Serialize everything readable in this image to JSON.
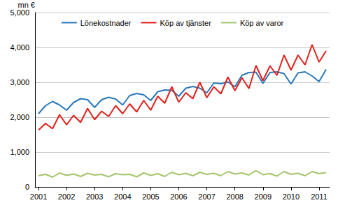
{
  "chart_data": {
    "type": "line",
    "y_label": "mn €",
    "categories": [
      "2001",
      null,
      null,
      null,
      "2002",
      null,
      null,
      null,
      "2003",
      null,
      null,
      null,
      "2004",
      null,
      null,
      null,
      "2005",
      null,
      null,
      null,
      "2006",
      null,
      null,
      null,
      "2007",
      null,
      null,
      null,
      "2008",
      null,
      null,
      null,
      "2009",
      null,
      null,
      null,
      "2010",
      null,
      null,
      null,
      "2011",
      null
    ],
    "series": [
      {
        "name": "Lönekostnader",
        "color": "#2a78b8",
        "values": [
          2100,
          2330,
          2450,
          2350,
          2200,
          2420,
          2530,
          2500,
          2280,
          2500,
          2570,
          2520,
          2350,
          2620,
          2680,
          2640,
          2480,
          2730,
          2780,
          2770,
          2600,
          2830,
          2880,
          2830,
          2700,
          2980,
          2960,
          3010,
          2870,
          3200,
          3280,
          3290,
          2970,
          3280,
          3300,
          3250,
          2950,
          3270,
          3300,
          3180,
          3020,
          3370
        ]
      },
      {
        "name": "Köp av tjänster",
        "color": "#e3201c",
        "values": [
          1630,
          1820,
          1670,
          2070,
          1780,
          2050,
          1850,
          2250,
          1930,
          2170,
          2020,
          2330,
          2100,
          2380,
          2150,
          2480,
          2200,
          2600,
          2400,
          2870,
          2430,
          2700,
          2530,
          3000,
          2560,
          2870,
          2670,
          3150,
          2760,
          3130,
          2820,
          3480,
          3050,
          3470,
          3200,
          3780,
          3350,
          3780,
          3500,
          4080,
          3580,
          3900
        ]
      },
      {
        "name": "Köp av varor",
        "color": "#a4c46c",
        "values": [
          320,
          360,
          280,
          400,
          330,
          370,
          300,
          390,
          340,
          360,
          290,
          380,
          350,
          360,
          290,
          400,
          330,
          380,
          300,
          420,
          350,
          390,
          320,
          420,
          360,
          390,
          320,
          440,
          370,
          400,
          340,
          470,
          350,
          380,
          310,
          440,
          360,
          390,
          320,
          440,
          380,
          410
        ]
      }
    ],
    "ylim": [
      0,
      5000
    ],
    "yticks": [
      0,
      1000,
      2000,
      3000,
      4000,
      5000
    ],
    "grid": true,
    "legend": "top"
  }
}
